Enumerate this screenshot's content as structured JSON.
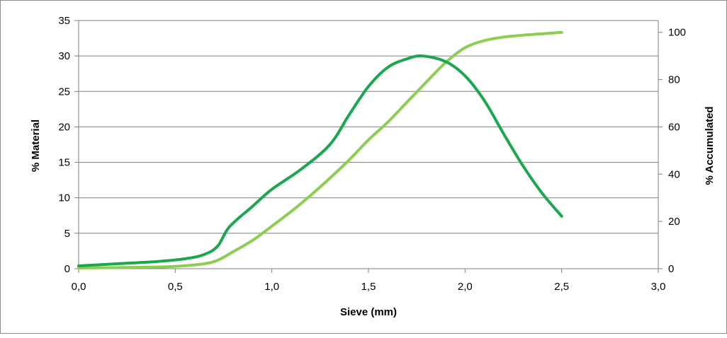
{
  "chart_data": {
    "type": "line",
    "xlabel": "Sieve (mm)",
    "ylabel_left": "% Material",
    "ylabel_right": "% Accumulated",
    "xlim": [
      0,
      3
    ],
    "ylim_left": [
      0,
      35
    ],
    "ylim_right": [
      0,
      105
    ],
    "x_ticks": [
      "0,0",
      "0,5",
      "1,0",
      "1,5",
      "2,0",
      "2,5",
      "3,0"
    ],
    "y_left_ticks": [
      "0",
      "5",
      "10",
      "15",
      "20",
      "25",
      "30",
      "35"
    ],
    "y_right_ticks": [
      "0",
      "20",
      "40",
      "60",
      "80",
      "100"
    ],
    "grid": "horizontal",
    "legend": "none",
    "series": [
      {
        "axis": "left",
        "color": "#1aa84e",
        "points": [
          [
            0.0,
            0.4
          ],
          [
            0.2,
            0.7
          ],
          [
            0.4,
            1.0
          ],
          [
            0.55,
            1.4
          ],
          [
            0.65,
            2.0
          ],
          [
            0.72,
            3.2
          ],
          [
            0.78,
            5.9
          ],
          [
            0.9,
            8.8
          ],
          [
            1.0,
            11.2
          ],
          [
            1.15,
            14.0
          ],
          [
            1.3,
            17.5
          ],
          [
            1.4,
            21.7
          ],
          [
            1.5,
            25.7
          ],
          [
            1.6,
            28.4
          ],
          [
            1.7,
            29.6
          ],
          [
            1.78,
            30.0
          ],
          [
            1.9,
            29.2
          ],
          [
            2.0,
            27.2
          ],
          [
            2.1,
            23.7
          ],
          [
            2.2,
            19.0
          ],
          [
            2.3,
            14.5
          ],
          [
            2.4,
            10.6
          ],
          [
            2.5,
            7.4
          ]
        ]
      },
      {
        "axis": "right",
        "color": "#8ccf50",
        "points": [
          [
            0.0,
            0.3
          ],
          [
            0.3,
            0.6
          ],
          [
            0.5,
            1.0
          ],
          [
            0.65,
            2.1
          ],
          [
            0.72,
            3.6
          ],
          [
            0.8,
            7.2
          ],
          [
            0.9,
            12.0
          ],
          [
            1.0,
            18.0
          ],
          [
            1.1,
            24.2
          ],
          [
            1.2,
            31.0
          ],
          [
            1.3,
            38.3
          ],
          [
            1.4,
            46.0
          ],
          [
            1.5,
            54.5
          ],
          [
            1.6,
            62.0
          ],
          [
            1.7,
            70.5
          ],
          [
            1.8,
            79.0
          ],
          [
            1.9,
            87.3
          ],
          [
            2.0,
            93.5
          ],
          [
            2.1,
            96.5
          ],
          [
            2.2,
            98.0
          ],
          [
            2.3,
            98.8
          ],
          [
            2.4,
            99.4
          ],
          [
            2.5,
            100.0
          ]
        ]
      }
    ]
  }
}
